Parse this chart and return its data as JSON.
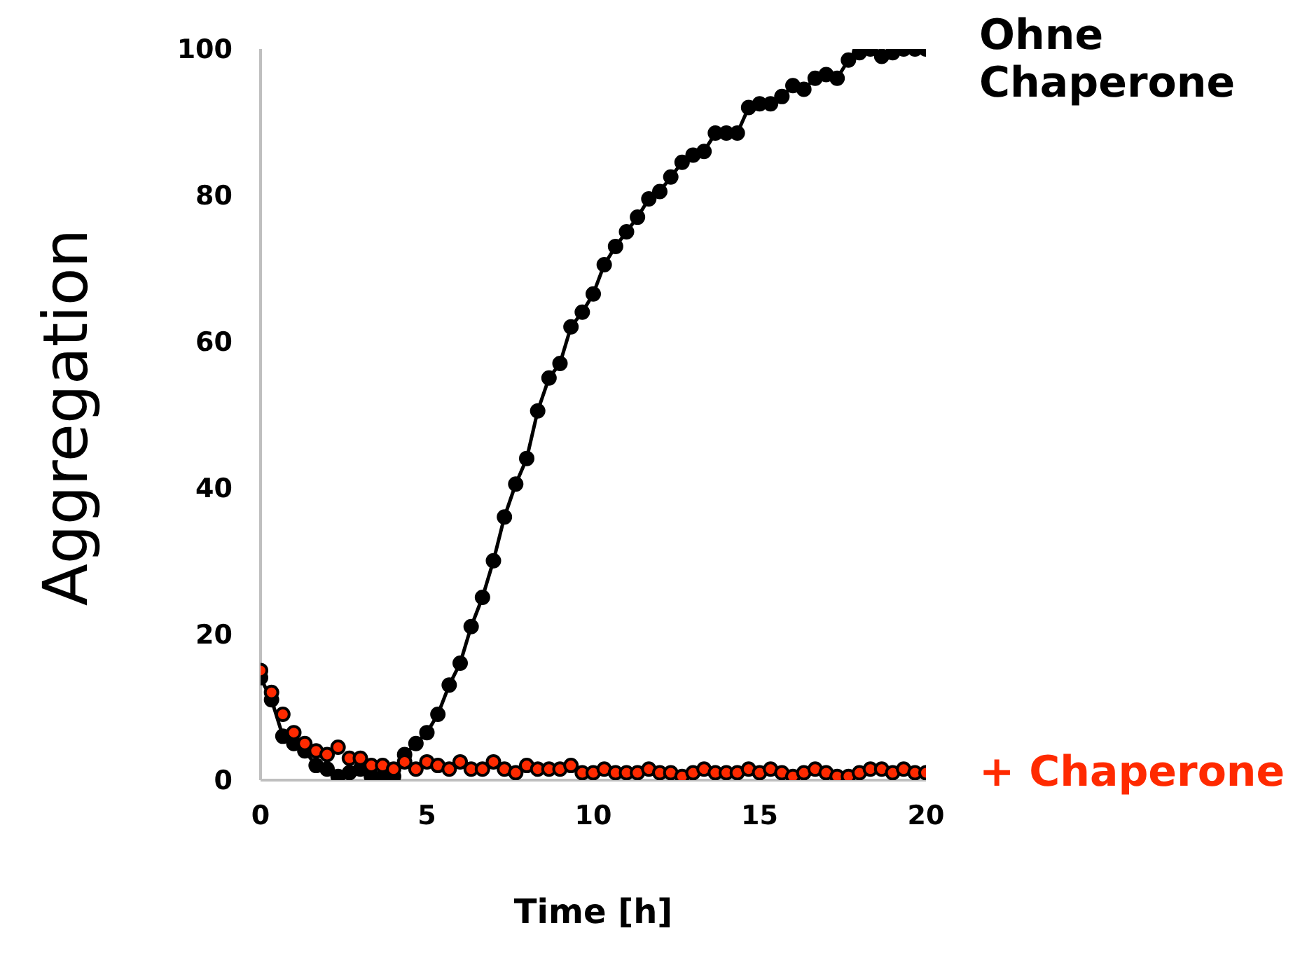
{
  "chart_data": {
    "type": "line",
    "xlabel": "Time [h]",
    "ylabel": "Aggregation",
    "xlim": [
      0,
      20
    ],
    "xticks": [
      0,
      5,
      10,
      15,
      20
    ],
    "ylim": [
      0,
      100
    ],
    "yticks": [
      0,
      20,
      40,
      60,
      80,
      100
    ],
    "legend": "right",
    "marker": "circle",
    "line_style": "solid",
    "x": [
      0,
      0.33,
      0.67,
      1,
      1.33,
      1.67,
      2,
      2.33,
      2.67,
      3,
      3.33,
      3.67,
      4,
      4.33,
      4.67,
      5,
      5.33,
      5.67,
      6,
      6.33,
      6.67,
      7,
      7.33,
      7.67,
      8,
      8.33,
      8.67,
      9,
      9.33,
      9.67,
      10,
      10.33,
      10.67,
      11,
      11.33,
      11.67,
      12,
      12.33,
      12.67,
      13,
      13.33,
      13.67,
      14,
      14.33,
      14.67,
      15,
      15.33,
      15.67,
      16,
      16.33,
      16.67,
      17,
      17.33,
      17.67,
      18,
      18.33,
      18.67,
      19,
      19.33,
      19.67,
      20
    ],
    "series": [
      {
        "name": "Ohne Chaperone",
        "color": "#000000",
        "values": [
          14,
          11,
          6,
          5,
          4,
          2,
          1.5,
          0.5,
          1,
          1.5,
          0.5,
          0.5,
          0.5,
          3.5,
          5,
          6.5,
          9,
          13,
          16,
          21,
          25,
          30,
          36,
          40.5,
          44,
          50.5,
          55,
          57,
          62,
          64,
          66.5,
          70.5,
          73,
          75,
          77,
          79.5,
          80.5,
          82.5,
          84.5,
          85.5,
          86,
          88.5,
          88.5,
          88.5,
          92,
          92.5,
          92.5,
          93.5,
          95,
          94.5,
          96,
          96.5,
          96,
          98.5,
          99.5,
          100,
          99,
          99.5,
          100,
          100,
          100
        ]
      },
      {
        "name": "+ Chaperone",
        "type": "scatter",
        "color": "#ff2a00",
        "values": [
          15,
          12,
          9,
          6.5,
          5,
          4,
          3.5,
          4.5,
          3,
          3,
          2,
          2,
          1.5,
          2.5,
          1.5,
          2.5,
          2,
          1.5,
          2.5,
          1.5,
          1.5,
          2.5,
          1.5,
          1,
          2,
          1.5,
          1.5,
          1.5,
          2,
          1,
          1,
          1.5,
          1,
          1,
          1,
          1.5,
          1,
          1,
          0.5,
          1,
          1.5,
          1,
          1,
          1,
          1.5,
          1,
          1.5,
          1,
          0.5,
          1,
          1.5,
          1,
          0.5,
          0.5,
          1,
          1.5,
          1.5,
          1,
          1.5,
          1,
          1
        ]
      }
    ]
  }
}
